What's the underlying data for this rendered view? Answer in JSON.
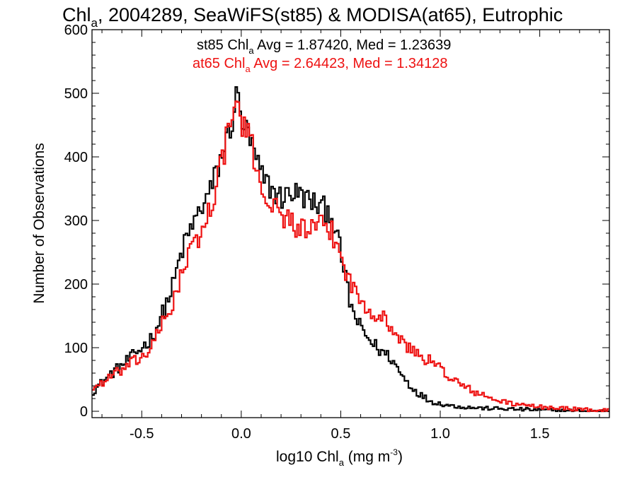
{
  "chart_data": {
    "type": "line",
    "title_main": "Chl",
    "title_sub": "a",
    "title_rest": ", 2004289, SeaWiFS(st85) & MODISA(at65), Eutrophic",
    "xlabel_pre": "log10 Chl",
    "xlabel_sub": "a",
    "xlabel_post": " (mg m",
    "xlabel_sup": "-3",
    "xlabel_close": ")",
    "ylabel": "Number of Observations",
    "xlim": [
      -0.75,
      1.85
    ],
    "ylim": [
      -10,
      600
    ],
    "xticks": [
      "-0.5",
      "0.0",
      "0.5",
      "1.0",
      "1.5"
    ],
    "xtick_values": [
      -0.5,
      0.0,
      0.5,
      1.0,
      1.5
    ],
    "yticks": [
      "0",
      "100",
      "200",
      "300",
      "400",
      "500",
      "600"
    ],
    "ytick_values": [
      0,
      100,
      200,
      300,
      400,
      500,
      600
    ],
    "grid": false,
    "legend": [
      {
        "pre": "st85 Chl",
        "sub": "a",
        "post": " Avg = 1.87420, Med = 1.23639",
        "color": "#000000"
      },
      {
        "pre": "at65 Chl",
        "sub": "a",
        "post": " Avg = 2.64423, Med = 1.34128",
        "color": "#ee1111"
      }
    ],
    "series": [
      {
        "color": "#000000",
        "x": [
          -0.75,
          -0.7,
          -0.65,
          -0.6,
          -0.55,
          -0.5,
          -0.45,
          -0.4,
          -0.35,
          -0.3,
          -0.25,
          -0.2,
          -0.15,
          -0.1,
          -0.05,
          -0.02,
          0.0,
          0.05,
          0.1,
          0.15,
          0.2,
          0.25,
          0.3,
          0.35,
          0.4,
          0.45,
          0.5,
          0.55,
          0.6,
          0.65,
          0.7,
          0.75,
          0.8,
          0.85,
          0.9,
          0.95,
          1.0,
          1.05,
          1.1,
          1.15,
          1.2,
          1.3,
          1.4,
          1.5,
          1.6,
          1.7,
          1.85
        ],
        "values": [
          30,
          45,
          60,
          72,
          85,
          100,
          115,
          150,
          190,
          250,
          290,
          320,
          350,
          400,
          450,
          500,
          460,
          420,
          370,
          350,
          335,
          345,
          340,
          330,
          320,
          315,
          250,
          165,
          130,
          110,
          95,
          85,
          60,
          40,
          26,
          16,
          12,
          9,
          7,
          6,
          5,
          4,
          3,
          2,
          1,
          0,
          0
        ]
      },
      {
        "color": "#ee1111",
        "x": [
          -0.75,
          -0.7,
          -0.65,
          -0.6,
          -0.55,
          -0.5,
          -0.45,
          -0.4,
          -0.35,
          -0.3,
          -0.25,
          -0.2,
          -0.15,
          -0.1,
          -0.05,
          -0.02,
          0.0,
          0.05,
          0.1,
          0.15,
          0.2,
          0.25,
          0.3,
          0.35,
          0.4,
          0.45,
          0.5,
          0.55,
          0.6,
          0.65,
          0.7,
          0.75,
          0.8,
          0.85,
          0.9,
          0.95,
          1.0,
          1.05,
          1.1,
          1.15,
          1.2,
          1.3,
          1.4,
          1.5,
          1.6,
          1.7,
          1.85
        ],
        "values": [
          35,
          45,
          55,
          65,
          75,
          85,
          100,
          135,
          165,
          215,
          255,
          280,
          325,
          390,
          460,
          485,
          455,
          420,
          355,
          325,
          310,
          300,
          285,
          285,
          290,
          285,
          245,
          200,
          175,
          160,
          150,
          135,
          110,
          98,
          88,
          78,
          68,
          54,
          42,
          34,
          26,
          16,
          10,
          7,
          5,
          3,
          1
        ]
      }
    ]
  }
}
